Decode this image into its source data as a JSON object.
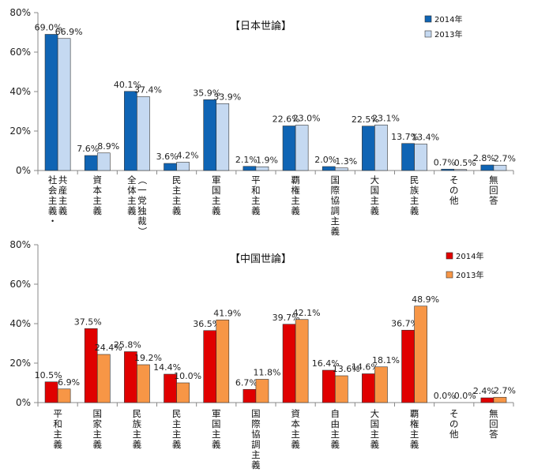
{
  "chart_data": [
    {
      "type": "bar",
      "title": "【日本世論】",
      "categories": [
        "社会主義・共産主義",
        "資本主義",
        "全体主義（一党独裁）",
        "民主主義",
        "軍国主義",
        "平和主義",
        "覇権主義",
        "国際協調主義",
        "大国主義",
        "民族主義",
        "その他",
        "無回答"
      ],
      "category_lines": [
        [
          "社会主義・",
          "共産主義"
        ],
        [
          "資本主義"
        ],
        [
          "全体主義",
          "（一党独裁）"
        ],
        [
          "民主主義"
        ],
        [
          "軍国主義"
        ],
        [
          "平和主義"
        ],
        [
          "覇権主義"
        ],
        [
          "国際協調主義"
        ],
        [
          "大国主義"
        ],
        [
          "民族主義"
        ],
        [
          "その他"
        ],
        [
          "無回答"
        ]
      ],
      "series": [
        {
          "name": "2014年",
          "values": [
            69.0,
            7.6,
            40.1,
            3.6,
            35.9,
            2.1,
            22.6,
            2.0,
            22.5,
            13.7,
            0.7,
            2.8
          ],
          "labels": [
            "69.0%",
            "7.6%",
            "40.1%",
            "3.6%",
            "35.9%",
            "2.1%",
            "22.6%",
            "2.0%",
            "22.5%",
            "13.7%",
            "0.7%",
            "2.8%"
          ],
          "color": "#0F64B4"
        },
        {
          "name": "2013年",
          "values": [
            66.9,
            8.9,
            37.4,
            4.2,
            33.9,
            1.9,
            23.0,
            1.3,
            23.1,
            13.4,
            0.5,
            2.7
          ],
          "labels": [
            "66.9%",
            "8.9%",
            "37.4%",
            "4.2%",
            "33.9%",
            "1.9%",
            "23.0%",
            "1.3%",
            "23.1%",
            "13.4%",
            "0.5%",
            "2.7%"
          ],
          "color": "#C5D9F1"
        }
      ],
      "ylim": [
        0,
        80
      ],
      "yticks": [
        0,
        20,
        40,
        60,
        80
      ],
      "ytick_labels": [
        "0%",
        "20%",
        "40%",
        "60%",
        "80%"
      ],
      "legend_position": "top-right",
      "grid": false
    },
    {
      "type": "bar",
      "title": "【中国世論】",
      "categories": [
        "平和主義",
        "国家主義",
        "民族主義",
        "民主主義",
        "軍国主義",
        "国際協調主義",
        "資本主義",
        "自由主義",
        "大国主義",
        "覇権主義",
        "その他",
        "無回答"
      ],
      "category_lines": [
        [
          "平和主義"
        ],
        [
          "国家主義"
        ],
        [
          "民族主義"
        ],
        [
          "民主主義"
        ],
        [
          "軍国主義"
        ],
        [
          "国際協調主義"
        ],
        [
          "資本主義"
        ],
        [
          "自由主義"
        ],
        [
          "大国主義"
        ],
        [
          "覇権主義"
        ],
        [
          "その他"
        ],
        [
          "無回答"
        ]
      ],
      "series": [
        {
          "name": "2014年",
          "values": [
            10.5,
            37.5,
            25.8,
            14.4,
            36.5,
            6.7,
            39.7,
            16.4,
            14.6,
            36.7,
            0.0,
            2.4
          ],
          "labels": [
            "10.5%",
            "37.5%",
            "25.8%",
            "14.4%",
            "36.5%",
            "6.7%",
            "39.7%",
            "16.4%",
            "14.6%",
            "36.7%",
            "0.0%",
            "2.4%"
          ],
          "color": "#E00000"
        },
        {
          "name": "2013年",
          "values": [
            6.9,
            24.4,
            19.2,
            10.0,
            41.9,
            11.8,
            42.1,
            13.6,
            18.1,
            48.9,
            0.0,
            2.7
          ],
          "labels": [
            "6.9%",
            "24.4%",
            "19.2%",
            "10.0%",
            "41.9%",
            "11.8%",
            "42.1%",
            "13.6%",
            "18.1%",
            "48.9%",
            "0.0%",
            "2.7%"
          ],
          "color": "#F79646"
        }
      ],
      "ylim": [
        0,
        80
      ],
      "yticks": [
        0,
        20,
        40,
        60,
        80
      ],
      "ytick_labels": [
        "0%",
        "20%",
        "40%",
        "60%",
        "80%"
      ],
      "legend_position": "top-right",
      "grid": false
    }
  ]
}
